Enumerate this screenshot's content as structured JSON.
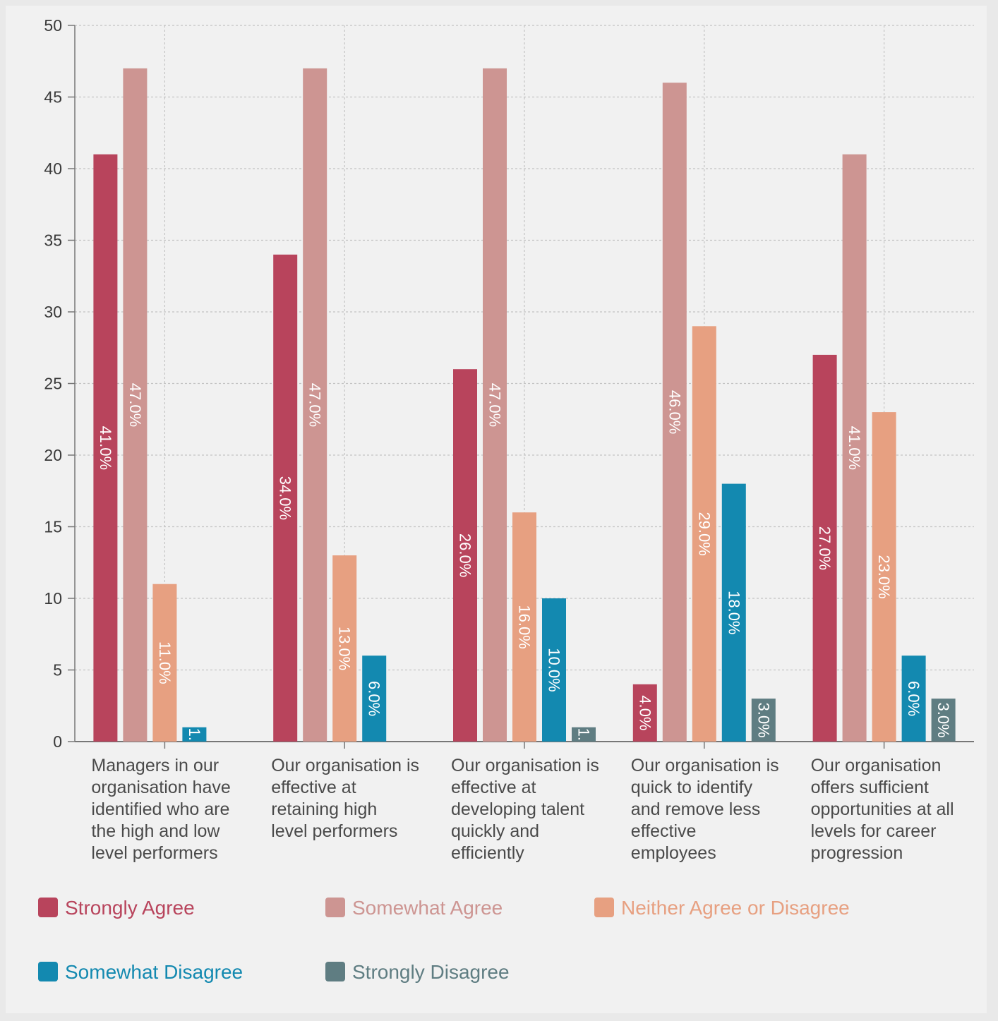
{
  "chart_data": {
    "type": "bar",
    "categories": [
      "Managers in our organisation have identified who are the high and low level performers",
      "Our organisation is effective at retaining high level performers",
      "Our organisation is effective at developing talent quickly and efficiently",
      "Our organisation is quick to identify and remove less effective employees",
      "Our organisation offers sufficient opportunities at all levels for career progression"
    ],
    "category_lines": [
      [
        "Managers in our",
        "organisation have",
        "identified who are",
        "the high and low",
        "level performers"
      ],
      [
        "Our organisation is",
        "effective at",
        "retaining high",
        "level performers"
      ],
      [
        "Our organisation is",
        "effective at",
        "developing talent",
        "quickly and",
        "efficiently"
      ],
      [
        "Our organisation is",
        "quick to identify",
        "and remove less",
        "effective",
        "employees"
      ],
      [
        "Our organisation",
        "offers sufficient",
        "opportunities at all",
        "levels for career",
        "progression"
      ]
    ],
    "series": [
      {
        "name": "Strongly Agree",
        "color": "#b8445c",
        "values": [
          41,
          34,
          26,
          4,
          27
        ],
        "labels": [
          "41.0%",
          "34.0%",
          "26.0%",
          "4.0%",
          "27.0%"
        ]
      },
      {
        "name": "Somewhat Agree",
        "color": "#cd9592",
        "values": [
          47,
          47,
          47,
          46,
          41
        ],
        "labels": [
          "47.0%",
          "47.0%",
          "47.0%",
          "46.0%",
          "41.0%"
        ]
      },
      {
        "name": "Neither Agree or Disagree",
        "color": "#e7a081",
        "values": [
          11,
          13,
          16,
          29,
          23
        ],
        "labels": [
          "11.0%",
          "13.0%",
          "16.0%",
          "29.0%",
          "23.0%"
        ]
      },
      {
        "name": "Somewhat Disagree",
        "color": "#1389b0",
        "values": [
          1,
          6,
          10,
          18,
          6
        ],
        "labels": [
          "1.",
          "6.0%",
          "10.0%",
          "18.0%",
          "6.0%"
        ]
      },
      {
        "name": "Strongly Disagree",
        "color": "#5f7d82",
        "values": [
          0,
          0,
          1,
          3,
          3
        ],
        "labels": [
          "",
          "",
          "1.",
          "3.0%",
          "3.0%"
        ]
      }
    ],
    "ylim": [
      0,
      50
    ],
    "yticks": [
      "0",
      "5",
      "10",
      "15",
      "20",
      "25",
      "30",
      "35",
      "40",
      "45",
      "50"
    ],
    "grid": true,
    "legend_position": "bottom",
    "xlabel": "",
    "ylabel": ""
  }
}
